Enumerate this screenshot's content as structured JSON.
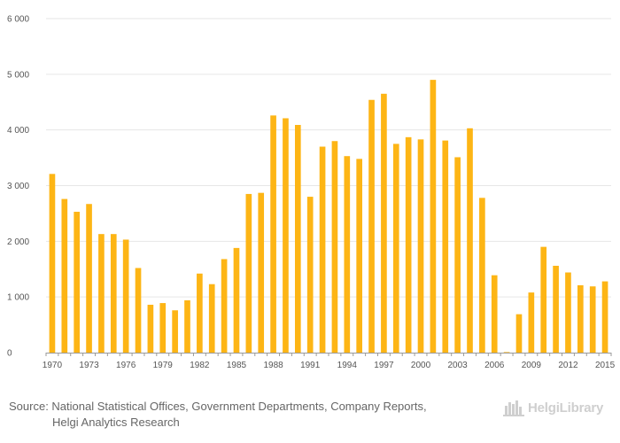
{
  "chart_data": {
    "type": "bar",
    "title": "",
    "xlabel": "",
    "ylabel": "",
    "ylim": [
      0,
      6000
    ],
    "y_ticks": [
      0,
      1000,
      2000,
      3000,
      4000,
      5000,
      6000
    ],
    "y_tick_labels": [
      "0",
      "1 000",
      "2 000",
      "3 000",
      "4 000",
      "5 000",
      "6 000"
    ],
    "grid": true,
    "bar_color": "#FDB515",
    "categories": [
      "1970",
      "1971",
      "1972",
      "1973",
      "1974",
      "1975",
      "1976",
      "1977",
      "1978",
      "1979",
      "1980",
      "1981",
      "1982",
      "1983",
      "1984",
      "1985",
      "1986",
      "1987",
      "1988",
      "1989",
      "1990",
      "1991",
      "1992",
      "1993",
      "1994",
      "1995",
      "1996",
      "1997",
      "1998",
      "1999",
      "2000",
      "2001",
      "2002",
      "2003",
      "2004",
      "2005",
      "2006",
      "2007",
      "2008",
      "2009",
      "2010",
      "2011",
      "2012",
      "2013",
      "2014",
      "2015"
    ],
    "x_tick_labels": [
      "1970",
      "1973",
      "1976",
      "1979",
      "1982",
      "1985",
      "1988",
      "1991",
      "1994",
      "1997",
      "2000",
      "2003",
      "2006",
      "2009",
      "2012",
      "2015"
    ],
    "values": [
      3210,
      2760,
      2530,
      2670,
      2130,
      2130,
      2030,
      1520,
      860,
      890,
      760,
      940,
      1420,
      1230,
      1680,
      1880,
      2850,
      2870,
      4260,
      4210,
      4090,
      2800,
      3700,
      3800,
      3530,
      3480,
      4540,
      4650,
      3750,
      3870,
      3830,
      4900,
      3810,
      3510,
      4030,
      2780,
      1390,
      10,
      690,
      1080,
      1900,
      1560,
      1440,
      1210,
      1190,
      1280
    ]
  },
  "footer": {
    "source_line1": "Source: National Statistical Offices, Government Departments, Company Reports,",
    "source_line2": "Helgi Analytics Research",
    "brand": "HelgiLibrary"
  }
}
